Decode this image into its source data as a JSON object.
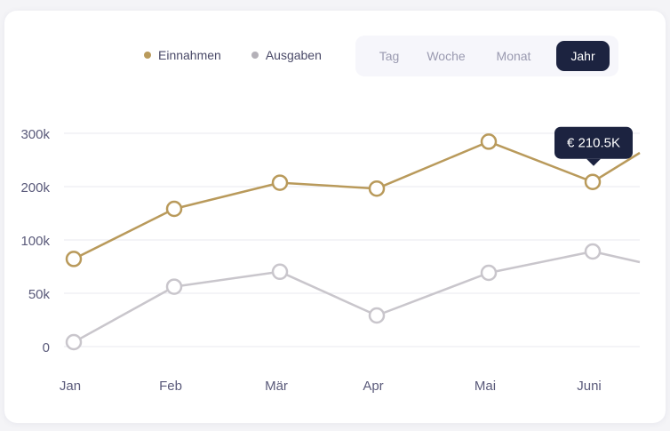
{
  "legend": {
    "income_label": "Einnahmen",
    "expenses_label": "Ausgaben"
  },
  "period": {
    "options": [
      "Tag",
      "Woche",
      "Monat",
      "Jahr"
    ],
    "selected": "Jahr"
  },
  "tooltip": {
    "text": "€ 210.5K"
  },
  "colors": {
    "income": "#b99a5b",
    "expenses": "#c9c6cc",
    "grid": "#e8e8ef",
    "active_tab": "#1c2340",
    "tooltip_bg": "#1c2340"
  },
  "chart_data": {
    "type": "line",
    "categories": [
      "Jan",
      "Feb",
      "Mär",
      "Apr",
      "Mai",
      "Juni"
    ],
    "y_tick_labels": [
      "0",
      "50k",
      "100k",
      "200k",
      "300k"
    ],
    "grid": true,
    "legend_position": "top",
    "series": [
      {
        "name": "Einnahmen",
        "values": [
          83,
          160,
          209,
          198,
          286,
          210.5
        ],
        "end_value": 265,
        "color": "#b99a5b"
      },
      {
        "name": "Ausgaben",
        "values": [
          5,
          57,
          71,
          30,
          70,
          90
        ],
        "end_value": 80,
        "color": "#c9c6cc"
      }
    ],
    "highlighted_point": {
      "series": "Einnahmen",
      "category": "Juni",
      "label": "€ 210.5K"
    }
  }
}
